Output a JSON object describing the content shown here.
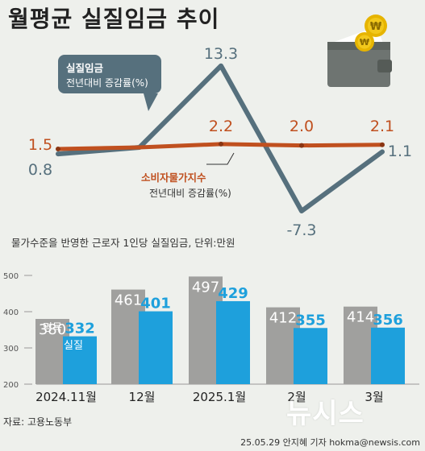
{
  "title": "월평균 실질임금 추이",
  "line_chart": {
    "wage_label_1": "실질임금",
    "wage_label_2": "전년대비 증감률(%)",
    "cpi_label_1": "소비자물가지수",
    "cpi_label_2": "전년대비 증감률(%)"
  },
  "bar_chart": {
    "note": "물가수준을 반영한 근로자 1인당 실질임금, 단위:만원",
    "nominal_label": "명목",
    "real_label": "실질"
  },
  "source": "자료: 고용노동부",
  "credit": "25.05.29 안지혜 기자 hokma@newsis.com",
  "logo": "뉴시스",
  "colors": {
    "wage_line": "#56707d",
    "cpi_line": "#c0501f",
    "nominal_bar": "#a0a09e",
    "real_bar": "#1ea0dc",
    "background": "#eef0ec"
  },
  "icons": [
    "wallet-icon",
    "won-coin-icon"
  ],
  "chart_data": [
    {
      "type": "line",
      "title": "월평균 실질임금 추이",
      "categories": [
        "2024.11월",
        "12월",
        "2025.1월",
        "2월",
        "3월"
      ],
      "series": [
        {
          "name": "실질임금 전년대비 증감률(%)",
          "values": [
            0.8,
            null,
            13.3,
            -7.3,
            1.1
          ],
          "labels": [
            "0.8",
            "",
            "13.3",
            "-7.3",
            "1.1"
          ]
        },
        {
          "name": "소비자물가지수 전년대비 증감률(%)",
          "values": [
            1.5,
            null,
            2.2,
            2.0,
            2.1
          ],
          "labels": [
            "1.5",
            "",
            "2.2",
            "2.0",
            "2.1"
          ]
        }
      ]
    },
    {
      "type": "bar",
      "categories": [
        "2024.11월",
        "12월",
        "2025.1월",
        "2월",
        "3월"
      ],
      "series": [
        {
          "name": "명목",
          "values": [
            380,
            461,
            497,
            412,
            414
          ]
        },
        {
          "name": "실질",
          "values": [
            332,
            401,
            429,
            355,
            356
          ]
        }
      ],
      "ylim": [
        200,
        500
      ],
      "yticks": [
        "200",
        "300",
        "400",
        "500"
      ]
    }
  ]
}
